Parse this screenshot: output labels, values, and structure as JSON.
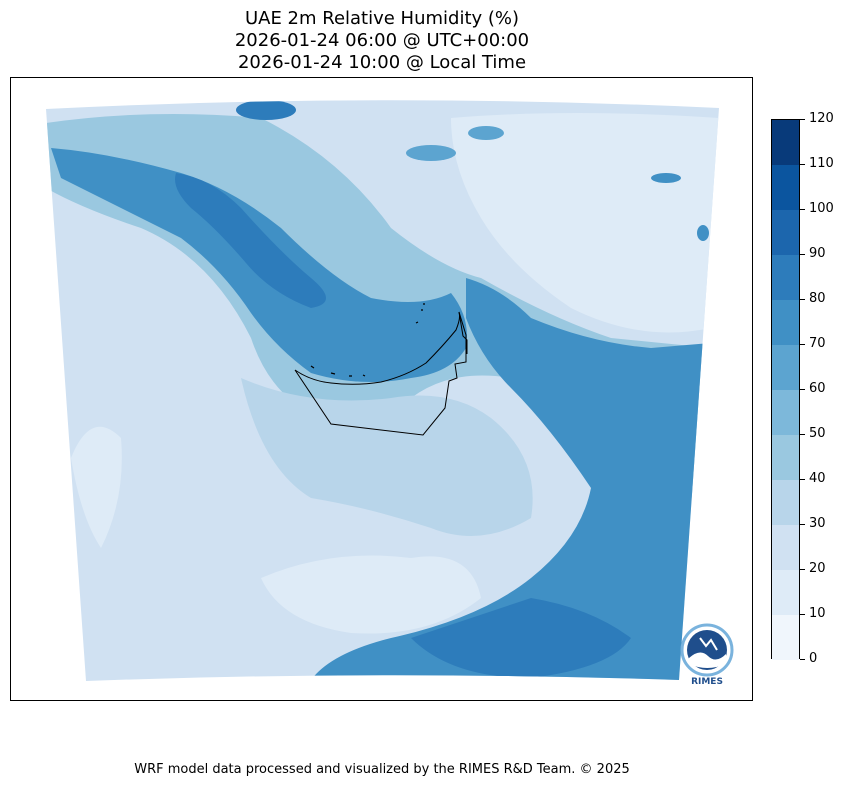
{
  "title": {
    "line1": "UAE 2m Relative Humidity (%)",
    "line2": "2026-01-24 06:00 @ UTC+00:00",
    "line3": "2026-01-24 10:00 @ Local Time"
  },
  "colorbar": {
    "ticks": [
      "0",
      "10",
      "20",
      "30",
      "40",
      "50",
      "60",
      "70",
      "80",
      "90",
      "100",
      "110",
      "120"
    ],
    "colors": [
      "#f0f6fc",
      "#deebf7",
      "#d0e1f2",
      "#b8d5ea",
      "#9ac8e0",
      "#7db8da",
      "#5ca4d0",
      "#4090c5",
      "#2d7cbb",
      "#1c66ad",
      "#0b559f",
      "#083a7a"
    ]
  },
  "logo": {
    "text": "RIMES"
  },
  "footer": "WRF model data processed and visualized by the RIMES R&D Team. © 2025"
}
